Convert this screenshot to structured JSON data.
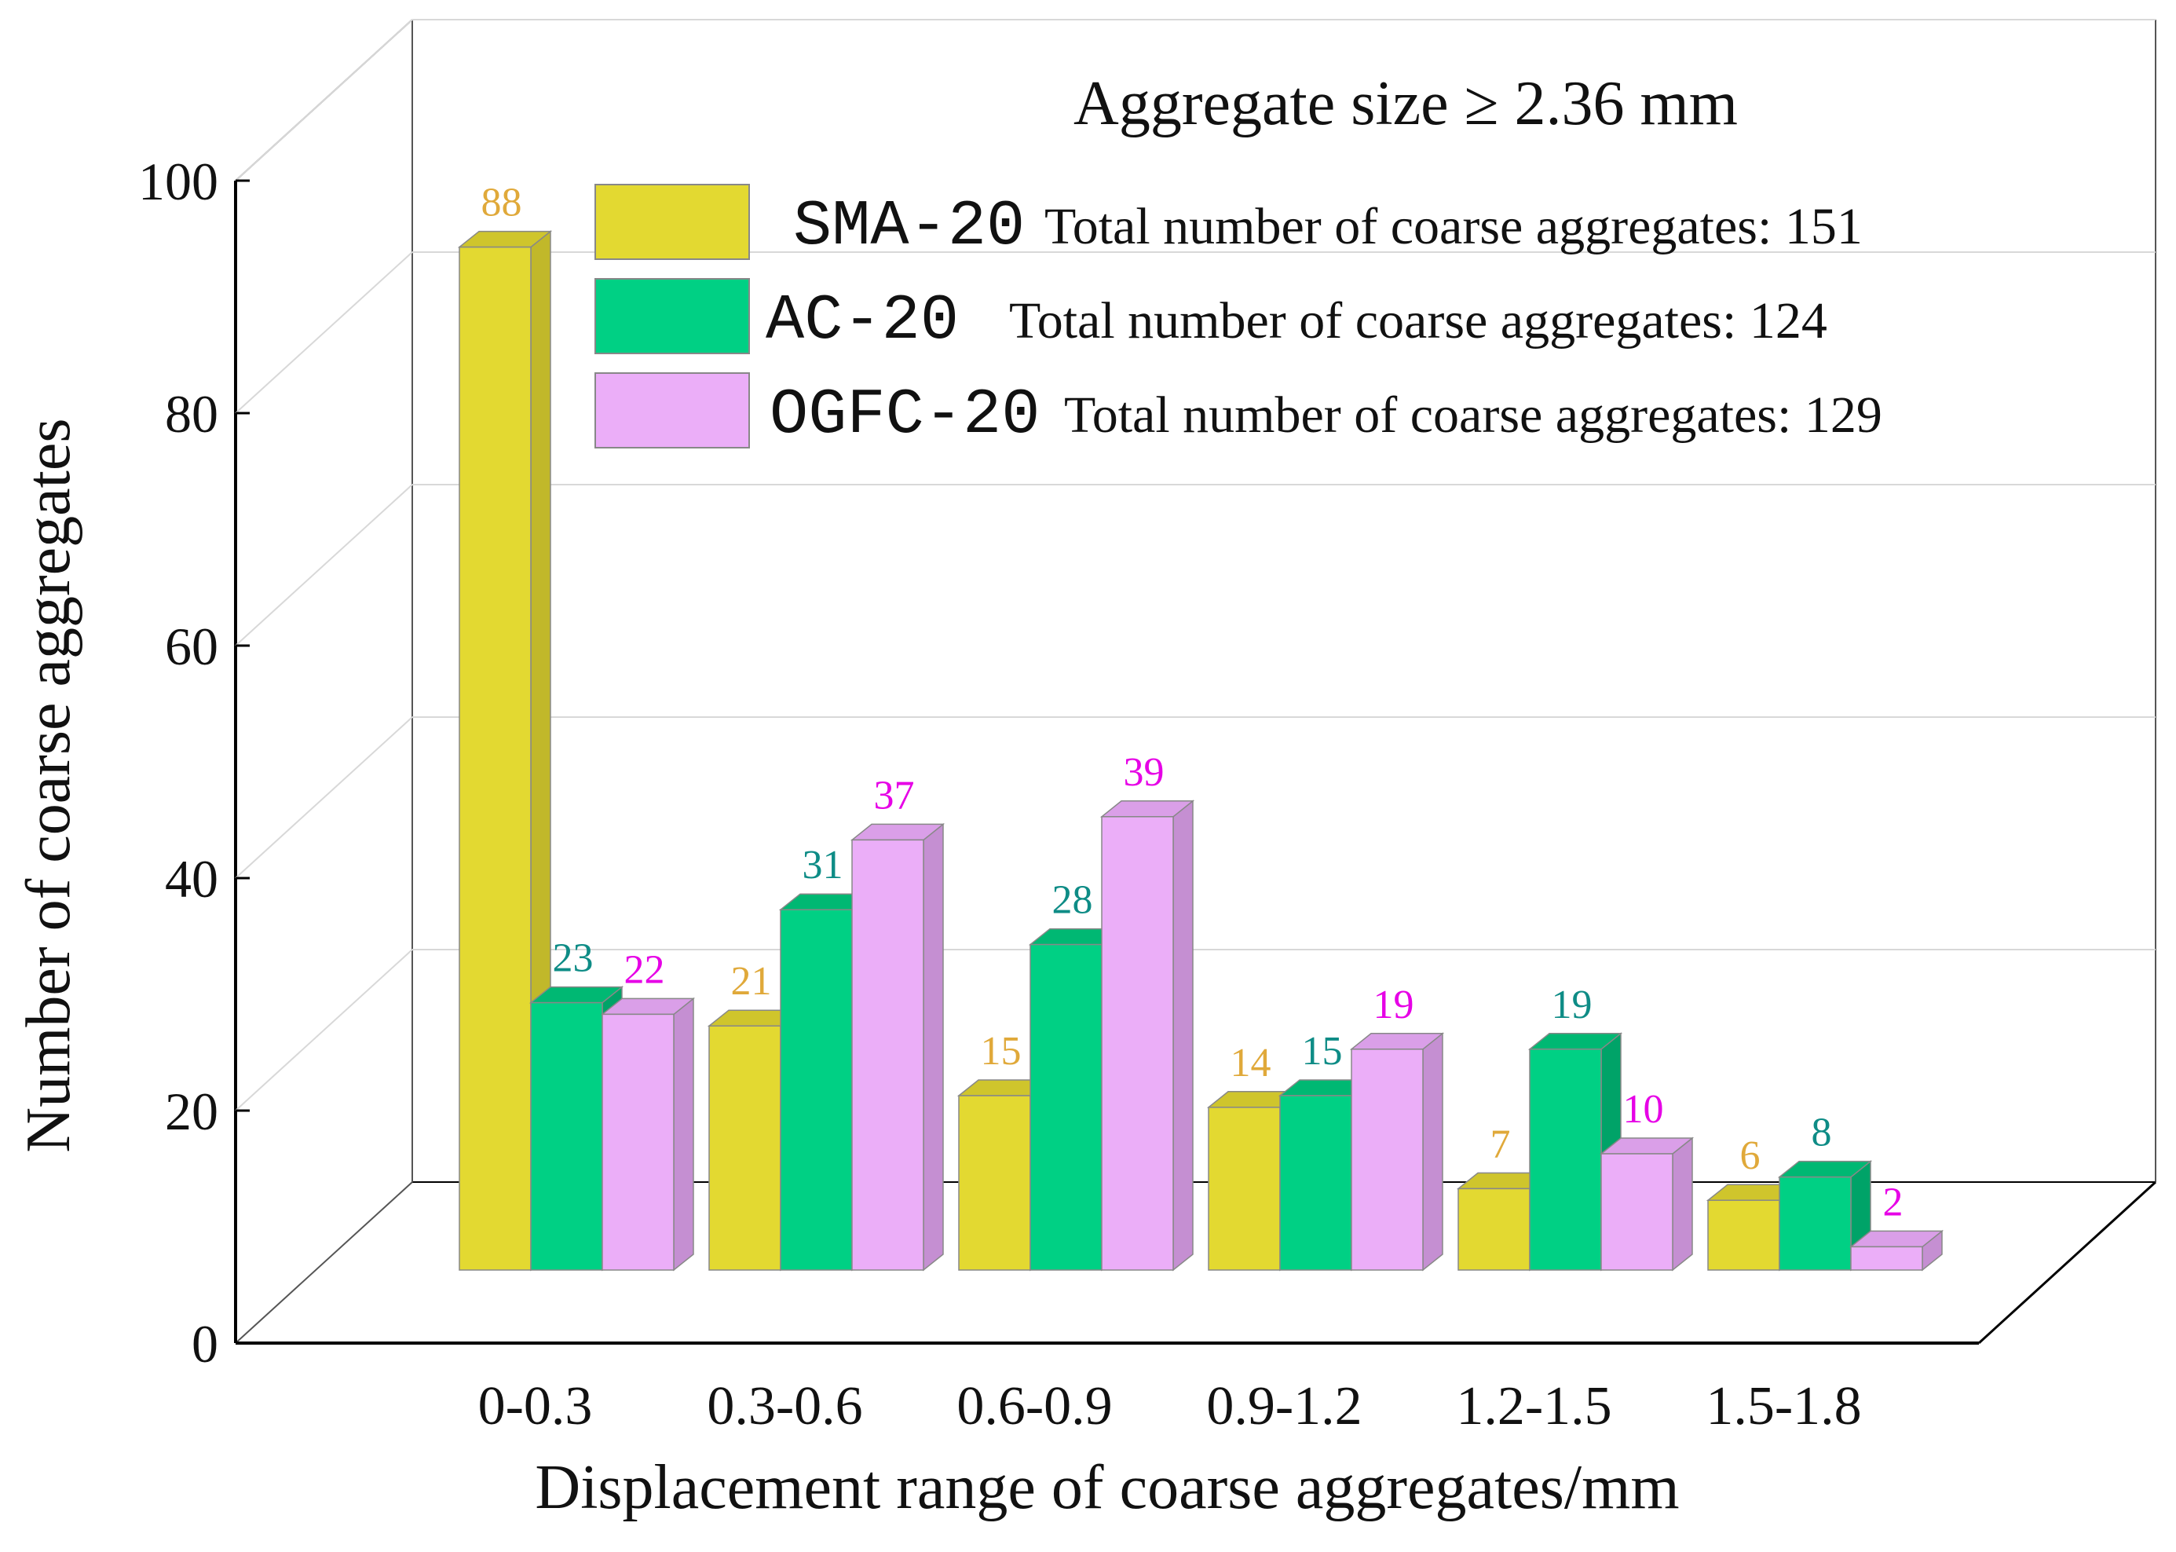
{
  "chart_data": {
    "type": "bar",
    "title": "Aggregate size ≥ 2.36 mm",
    "xlabel": "Displacement range of coarse aggregates/mm",
    "ylabel": "Number of coarse aggregates",
    "categories": [
      "0-0.3",
      "0.3-0.6",
      "0.6-0.9",
      "0.9-1.2",
      "1.2-1.5",
      "1.5-1.8"
    ],
    "yticks": [
      "0",
      "20",
      "40",
      "60",
      "80",
      "100"
    ],
    "ylim": [
      0,
      100
    ],
    "series": [
      {
        "name": "SMA-20",
        "legend_note": "Total number of coarse aggregates: 151",
        "values": [
          88,
          21,
          15,
          14,
          7,
          6
        ],
        "color": "#E3D931",
        "side_color": "#C1B82A",
        "top_color": "#CFC52C",
        "label_color": "#E0A93A"
      },
      {
        "name": "AC-20",
        "legend_note": "Total number of coarse aggregates: 124",
        "values": [
          23,
          31,
          28,
          15,
          19,
          8
        ],
        "color": "#00D084",
        "side_color": "#00A368",
        "top_color": "#00B873",
        "label_color": "#0E8C86"
      },
      {
        "name": "OGFC-20",
        "legend_note": "Total number of coarse aggregates: 129",
        "values": [
          22,
          37,
          39,
          19,
          10,
          2
        ],
        "color": "#EBAEF8",
        "side_color": "#C58FD2",
        "top_color": "#DA9FE8",
        "label_color": "#E600E6"
      }
    ],
    "grid": true,
    "legend_position": "top-right"
  }
}
